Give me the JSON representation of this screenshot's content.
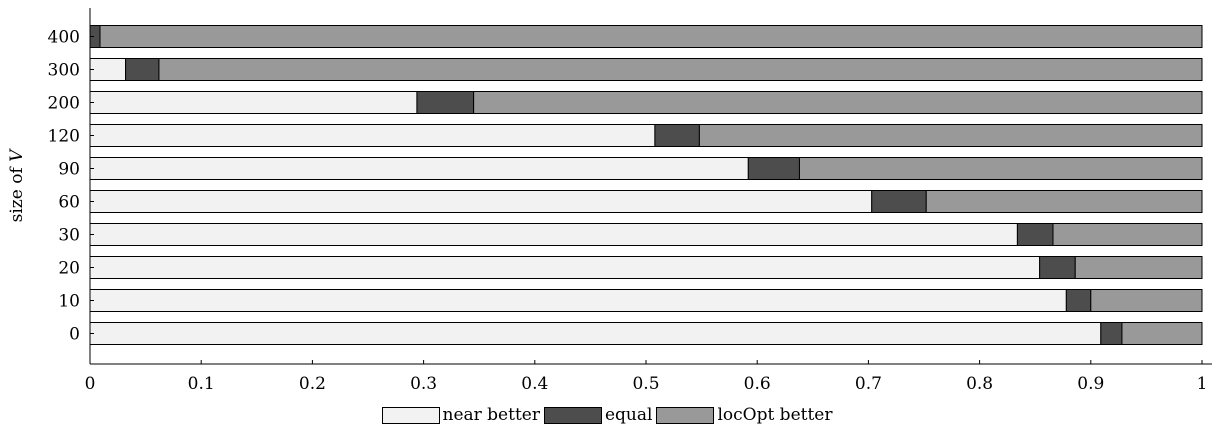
{
  "chart_data": {
    "type": "bar",
    "orientation": "horizontal",
    "stacked": true,
    "ylabel": "size of V",
    "xlabel": "",
    "title": "",
    "xlim": [
      0,
      1
    ],
    "xticks": [
      "0",
      "0.1",
      "0.2",
      "0.3",
      "0.4",
      "0.5",
      "0.6",
      "0.7",
      "0.8",
      "0.9",
      "1"
    ],
    "categories": [
      "400",
      "300",
      "200",
      "120",
      "90",
      "60",
      "30",
      "20",
      "10",
      "0"
    ],
    "series": [
      {
        "name": "near better",
        "color": "#f2f2f2",
        "values": [
          0.0,
          0.032,
          0.294,
          0.508,
          0.592,
          0.703,
          0.834,
          0.854,
          0.878,
          0.909
        ]
      },
      {
        "name": "equal",
        "color": "#4d4d4d",
        "values": [
          0.009,
          0.03,
          0.051,
          0.04,
          0.046,
          0.049,
          0.032,
          0.032,
          0.022,
          0.019
        ]
      },
      {
        "name": "locOpt better",
        "color": "#999999",
        "values": [
          0.991,
          0.938,
          0.655,
          0.452,
          0.362,
          0.248,
          0.134,
          0.114,
          0.1,
          0.072
        ]
      }
    ],
    "legend_position": "bottom-center",
    "grid": false
  }
}
